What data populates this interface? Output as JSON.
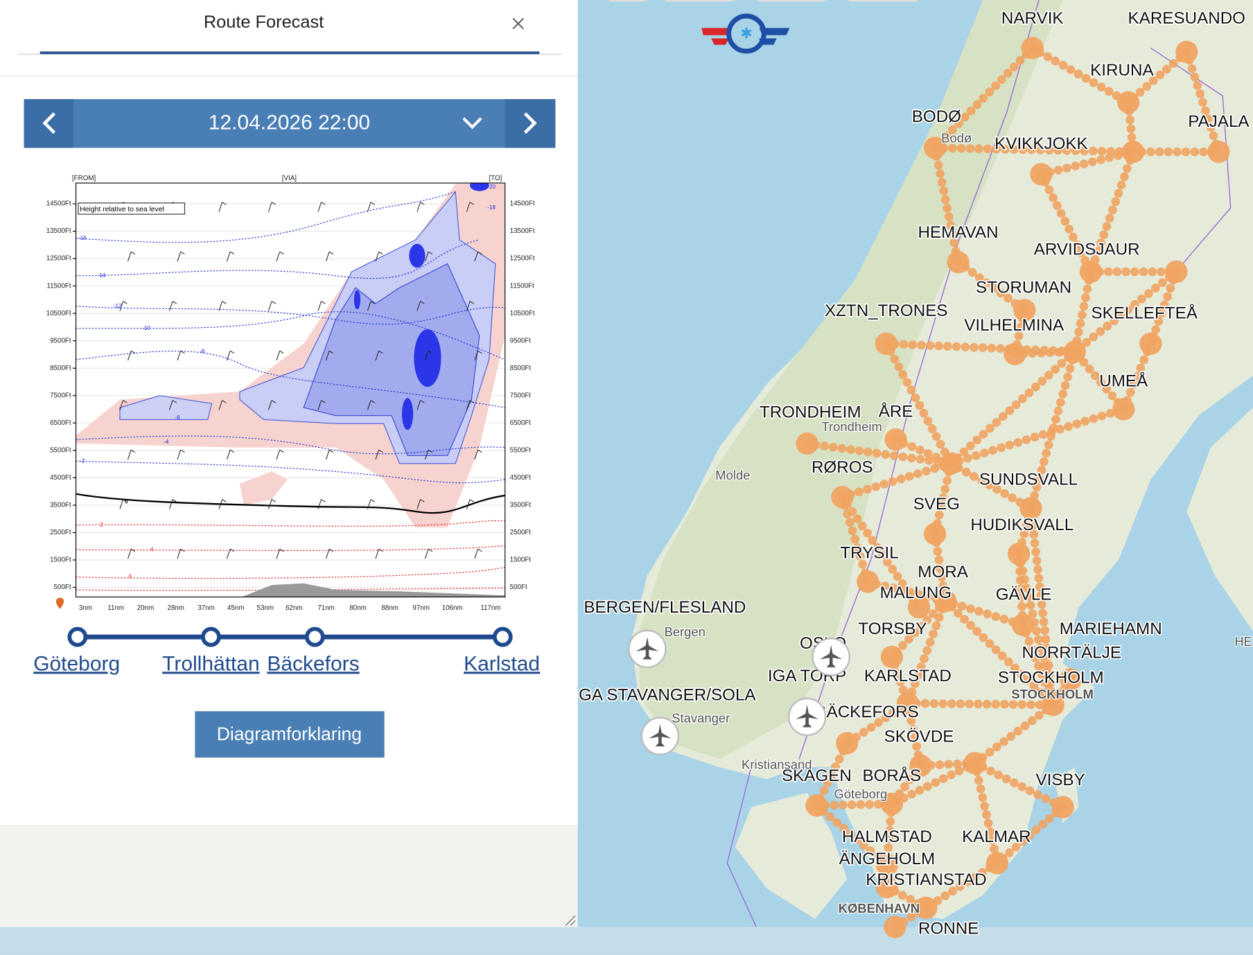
{
  "panel": {
    "title": "Route Forecast",
    "date": "12.04.2026 22:00",
    "button": "Diagramforklaring"
  },
  "diagram": {
    "from": "[FROM]",
    "via": "[VIA]",
    "to": "[TO]",
    "note": "Height relative to sea level",
    "height_ticks": [
      "500Ft",
      "1500Ft",
      "2500Ft",
      "3500Ft",
      "4500Ft",
      "5500Ft",
      "6500Ft",
      "7500Ft",
      "8500Ft",
      "9500Ft",
      "10500Ft",
      "11500Ft",
      "12500Ft",
      "13500Ft",
      "14500Ft"
    ],
    "distance_ticks": [
      "3nm",
      "11nm",
      "20nm",
      "28nm",
      "37nm",
      "45nm",
      "53nm",
      "62nm",
      "71nm",
      "80nm",
      "88nm",
      "97nm",
      "106nm",
      "117nm"
    ],
    "contour_labels": [
      "-20",
      "-18",
      "-16",
      "-14",
      "-12",
      "-10",
      "-8",
      "-6",
      "-4",
      "-2",
      "0",
      "2",
      "4",
      "6"
    ]
  },
  "route": {
    "stops": [
      "Göteborg",
      "Trollhättan",
      "Bäckefors",
      "Karlstad"
    ]
  },
  "map": {
    "labels": [
      "NARVIK",
      "KARESUANDO",
      "KIRUNA",
      "BODØ",
      "PAJALA",
      "KVIKKJOKK",
      "HEMAVAN",
      "ARVIDSJAUR",
      "STORUMAN",
      "XZTN_TRONES",
      "VILHELMINA",
      "SKELLEFTEÅ",
      "UMEÅ",
      "TRONDHEIM",
      "ÅRE",
      "RØROS",
      "SUNDSVALL",
      "SVEG",
      "HUDIKSVALL",
      "TRYSIL",
      "MORA",
      "MALUNG",
      "GÄVLE",
      "BERGEN/FLESLAND",
      "TORSBY",
      "MARIEHAMN",
      "OSLO",
      "NORRTÄLJE",
      "IGA TORP",
      "KARLSTAD",
      "STOCKHOLM",
      "GA STAVANGER/SOLA",
      "BÄCKEFORS",
      "SKÖVDE",
      "SKAGEN",
      "BORÅS",
      "VISBY",
      "HALMSTAD",
      "KALMAR",
      "ÄNGEHOLM",
      "KRISTIANSTAD",
      "RONNE"
    ],
    "places": [
      "Bodø",
      "Trondheim",
      "Molde",
      "Bergen",
      "STOCKHOLM",
      "Stavanger",
      "Kristiansand",
      "Göteborg",
      "KØBENHAVN",
      "HE"
    ]
  }
}
